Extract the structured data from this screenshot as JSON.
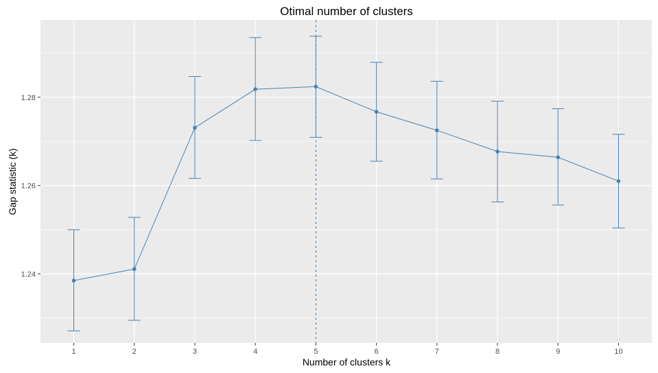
{
  "colors": {
    "panel": "#EBEBEB",
    "grid": "#FFFFFF",
    "series": "#4682B4",
    "tick": "#333333"
  },
  "chart_data": {
    "type": "line",
    "title": "Otimal number of clusters",
    "xlabel": "Number of clusters k",
    "ylabel": "Gap statistic (k)",
    "x": [
      1,
      2,
      3,
      4,
      5,
      6,
      7,
      8,
      9,
      10
    ],
    "x_tick_labels": [
      "1",
      "2",
      "3",
      "4",
      "5",
      "6",
      "7",
      "8",
      "9",
      "10"
    ],
    "xlim": [
      0.45,
      10.55
    ],
    "ylim": [
      1.2244,
      1.2975
    ],
    "y_ticks": [
      1.24,
      1.26,
      1.28
    ],
    "y_tick_labels": [
      "1.24",
      "1.26",
      "1.28"
    ],
    "y_minor_ticks": [
      1.23,
      1.25,
      1.27,
      1.29
    ],
    "optimal_k": 5,
    "series": [
      {
        "name": "gap",
        "values": [
          1.2385,
          1.2411,
          1.2731,
          1.2818,
          1.2824,
          1.2767,
          1.2725,
          1.2677,
          1.2664,
          1.261
        ],
        "error_lower": [
          1.2271,
          1.2295,
          1.2616,
          1.2702,
          1.2709,
          1.2655,
          1.2615,
          1.2563,
          1.2556,
          1.2504
        ],
        "error_upper": [
          1.25,
          1.2528,
          1.2847,
          1.2935,
          1.2938,
          1.2879,
          1.2836,
          1.2791,
          1.2774,
          1.2716
        ]
      }
    ]
  }
}
